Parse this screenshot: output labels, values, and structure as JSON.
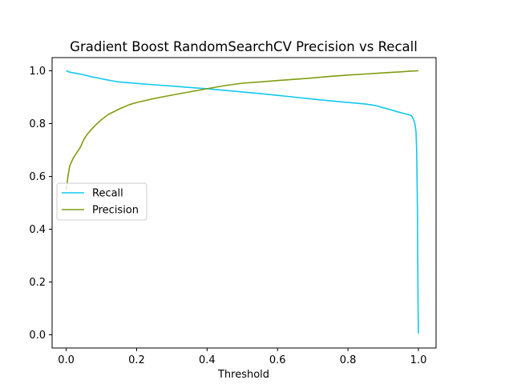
{
  "chart_data": {
    "type": "line",
    "title": "Gradient Boost RandomSearchCV Precision vs Recall",
    "xlabel": "Threshold",
    "ylabel": "",
    "xlim": [
      -0.04,
      1.05
    ],
    "ylim": [
      -0.05,
      1.05
    ],
    "xticks": [
      0.0,
      0.2,
      0.4,
      0.6,
      0.8,
      1.0
    ],
    "xtick_labels": [
      "0.0",
      "0.2",
      "0.4",
      "0.6",
      "0.8",
      "1.0"
    ],
    "yticks": [
      0.0,
      0.2,
      0.4,
      0.6,
      0.8,
      1.0
    ],
    "ytick_labels": [
      "0.0",
      "0.2",
      "0.4",
      "0.6",
      "0.8",
      "1.0"
    ],
    "grid": false,
    "legend_position": "center-left",
    "series": [
      {
        "name": "Recall",
        "color": "#12c8f0",
        "x": [
          0.0,
          0.01,
          0.03,
          0.05,
          0.07,
          0.1,
          0.13,
          0.15,
          0.18,
          0.2,
          0.25,
          0.3,
          0.35,
          0.4,
          0.45,
          0.5,
          0.55,
          0.6,
          0.65,
          0.7,
          0.75,
          0.8,
          0.85,
          0.88,
          0.9,
          0.92,
          0.94,
          0.96,
          0.97,
          0.98,
          0.985,
          0.99,
          0.993,
          0.995,
          0.997,
          0.998,
          0.999,
          1.0
        ],
        "values": [
          1.0,
          0.995,
          0.99,
          0.985,
          0.978,
          0.97,
          0.962,
          0.958,
          0.955,
          0.952,
          0.947,
          0.942,
          0.937,
          0.932,
          0.926,
          0.92,
          0.914,
          0.907,
          0.9,
          0.893,
          0.886,
          0.88,
          0.874,
          0.868,
          0.86,
          0.853,
          0.845,
          0.838,
          0.835,
          0.83,
          0.82,
          0.8,
          0.77,
          0.7,
          0.5,
          0.3,
          0.1,
          0.005
        ]
      },
      {
        "name": "Precision",
        "color": "#7f9c0e",
        "x": [
          0.0,
          0.005,
          0.01,
          0.02,
          0.03,
          0.04,
          0.05,
          0.06,
          0.08,
          0.1,
          0.12,
          0.15,
          0.18,
          0.2,
          0.25,
          0.3,
          0.35,
          0.4,
          0.45,
          0.5,
          0.55,
          0.6,
          0.65,
          0.7,
          0.75,
          0.8,
          0.85,
          0.9,
          0.95,
          0.98,
          1.0
        ],
        "values": [
          0.55,
          0.6,
          0.64,
          0.67,
          0.69,
          0.71,
          0.74,
          0.76,
          0.79,
          0.815,
          0.835,
          0.855,
          0.872,
          0.88,
          0.895,
          0.908,
          0.92,
          0.932,
          0.944,
          0.953,
          0.958,
          0.963,
          0.968,
          0.973,
          0.979,
          0.984,
          0.988,
          0.992,
          0.996,
          0.999,
          1.0
        ]
      }
    ]
  }
}
